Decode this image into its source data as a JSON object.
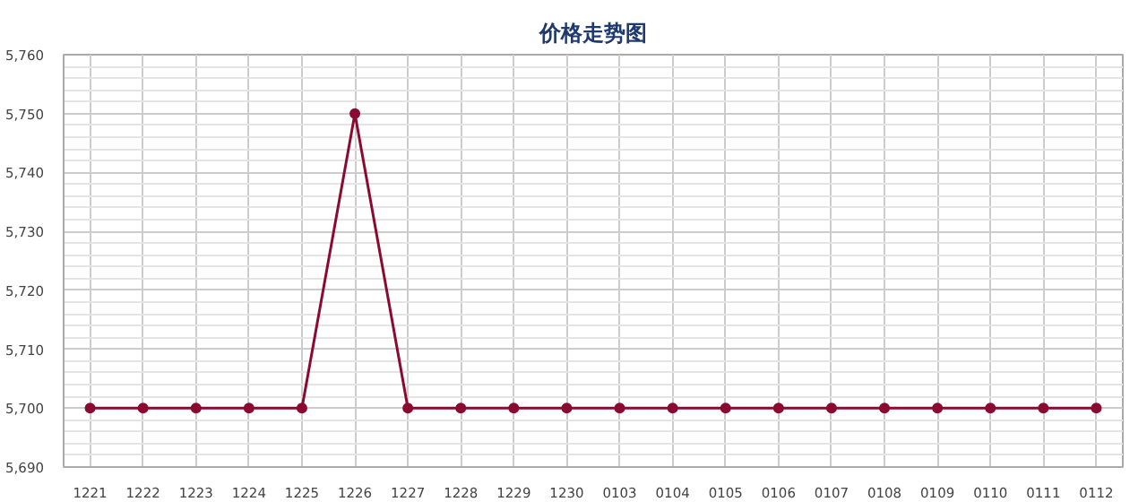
{
  "chart_data": {
    "type": "line",
    "title": "价格走势图",
    "categories": [
      "1221",
      "1222",
      "1223",
      "1224",
      "1225",
      "1226",
      "1227",
      "1228",
      "1229",
      "1230",
      "0103",
      "0104",
      "0105",
      "0106",
      "0107",
      "0108",
      "0109",
      "0110",
      "0111",
      "0112"
    ],
    "series": [
      {
        "color": "#8b0a32",
        "values": [
          5700,
          5700,
          5700,
          5700,
          5700,
          5750,
          5700,
          5700,
          5700,
          5700,
          5700,
          5700,
          5700,
          5700,
          5700,
          5700,
          5700,
          5700,
          5700,
          5700
        ]
      }
    ],
    "ylim": [
      5690,
      5760
    ],
    "yticks": [
      {
        "value": 5690,
        "label": "5,690"
      },
      {
        "value": 5700,
        "label": "5,700"
      },
      {
        "value": 5710,
        "label": "5,710"
      },
      {
        "value": 5720,
        "label": "5,720"
      },
      {
        "value": 5730,
        "label": "5,730"
      },
      {
        "value": 5740,
        "label": "5,740"
      },
      {
        "value": 5750,
        "label": "5,750"
      },
      {
        "value": 5760,
        "label": "5,760"
      }
    ],
    "grid": true,
    "marker": "circle",
    "line_style": "solid"
  }
}
